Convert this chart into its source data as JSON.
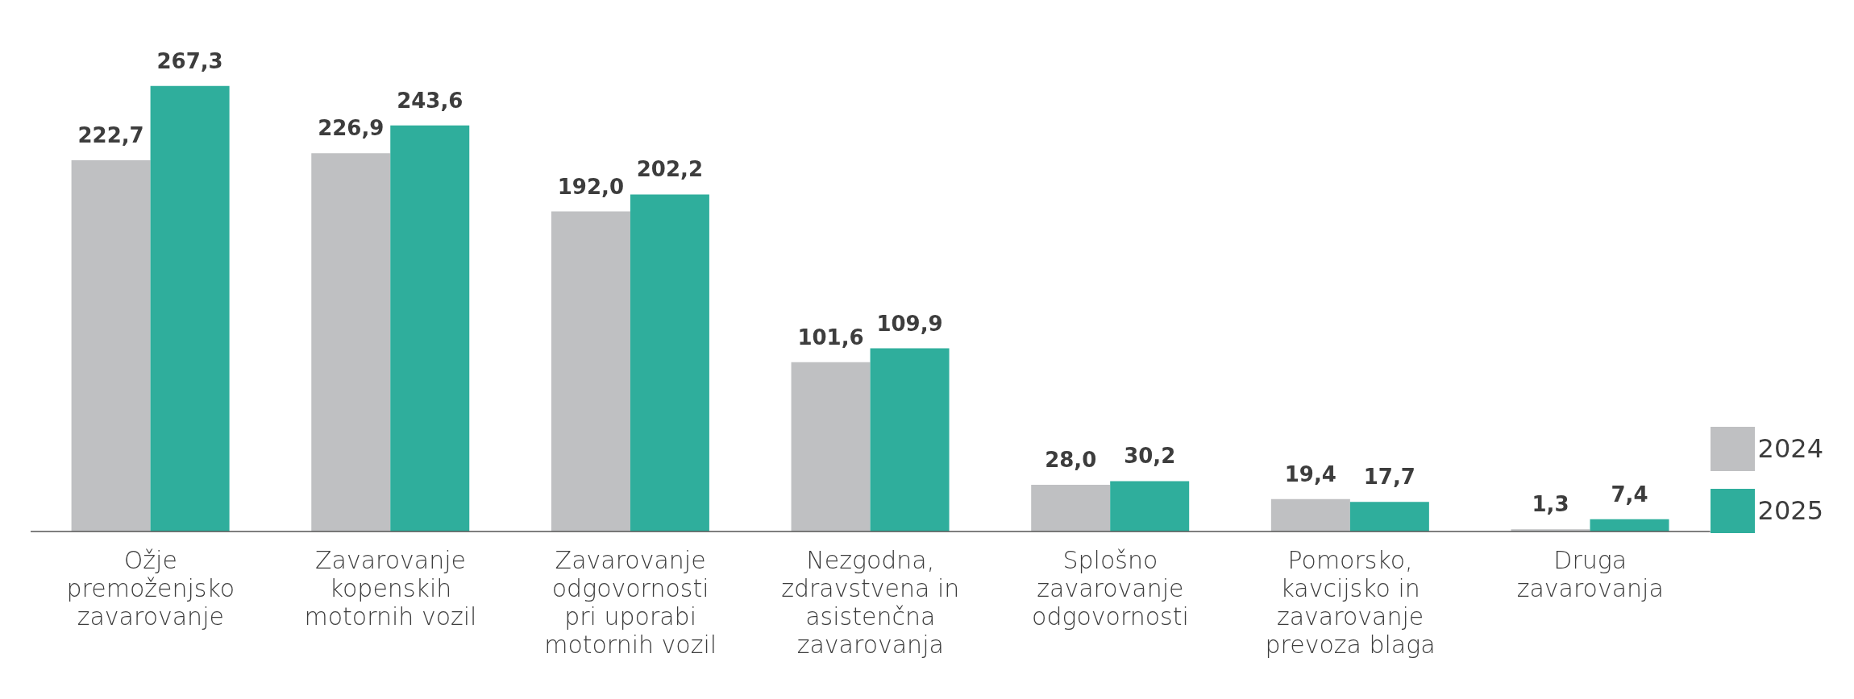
{
  "chart_data": {
    "type": "bar",
    "categories": [
      "Ožje premoženjsko zavarovanje",
      "Zavarovanje kopenskih motornih vozil",
      "Zavarovanje odgovornosti pri uporabi motornih vozil",
      "Nezgodna, zdravstvena in asistenčna zavarovanja",
      "Splošno zavarovanje odgovornosti",
      "Pomorsko, kavcijsko in zavarovanje prevoza blaga",
      "Druga zavarovanja"
    ],
    "series": [
      {
        "name": "2024",
        "color": "#bfc0c2",
        "values": [
          222.7,
          226.9,
          192.0,
          101.6,
          28.0,
          19.4,
          1.3
        ],
        "value_labels": [
          "222,7",
          "226,9",
          "192,0",
          "101,6",
          "28,0",
          "19,4",
          "1,3"
        ]
      },
      {
        "name": "2025",
        "color": "#2fae9c",
        "values": [
          267.3,
          243.6,
          202.2,
          109.9,
          30.2,
          17.7,
          7.4
        ],
        "value_labels": [
          "267,3",
          "243,6",
          "202,2",
          "109,9",
          "30,2",
          "17,7",
          "7,4"
        ]
      }
    ],
    "legend": "right",
    "grid": false
  }
}
